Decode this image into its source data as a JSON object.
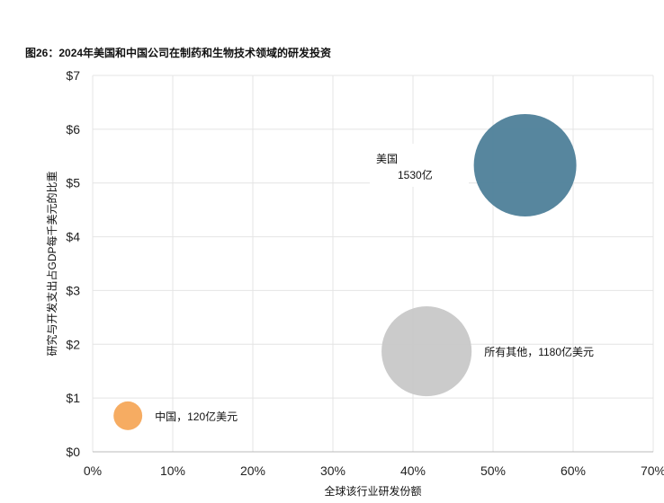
{
  "title": "图26：2024年美国和中国公司在制药和生物技术领域的研发投资",
  "chart_data": {
    "type": "bubble",
    "xlabel": "全球该行业研发份额",
    "ylabel": "研究与开发支出占GDP每千美元的比重",
    "xlim": [
      0,
      70
    ],
    "ylim": [
      0,
      7
    ],
    "xticks": [
      "0%",
      "10%",
      "20%",
      "30%",
      "40%",
      "50%",
      "60%",
      "70%"
    ],
    "yticks": [
      "$0",
      "$1",
      "$2",
      "$3",
      "$4",
      "$5",
      "$6",
      "$7"
    ],
    "grid": true,
    "series": [
      {
        "label_lines": [
          "美国",
          "1530亿"
        ],
        "x": 54.0,
        "y": 5.33,
        "size": 153,
        "color": "#4e7f99"
      },
      {
        "label_lines": [
          "所有其他，1180亿美元"
        ],
        "x": 41.7,
        "y": 1.87,
        "size": 118,
        "color": "#c8c8c8"
      },
      {
        "label_lines": [
          "中国，120亿美元"
        ],
        "x": 4.4,
        "y": 0.67,
        "size": 12,
        "color": "#f5a85a"
      }
    ]
  }
}
